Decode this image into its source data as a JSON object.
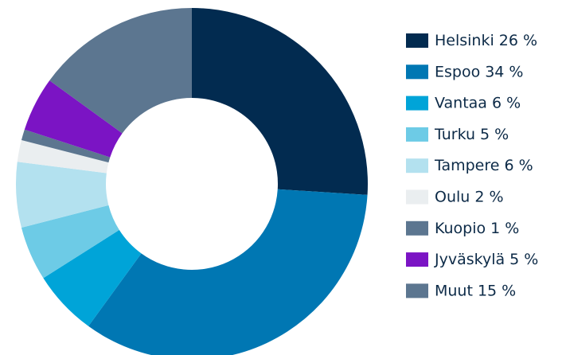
{
  "chart_data": {
    "type": "donut",
    "categories": [
      "Helsinki",
      "Espoo",
      "Vantaa",
      "Turku",
      "Tampere",
      "Oulu",
      "Kuopio",
      "Jyväskylä",
      "Muut"
    ],
    "values": [
      26,
      34,
      6,
      5,
      6,
      2,
      1,
      5,
      15
    ],
    "value_labels": [
      "26 %",
      "34 %",
      "6 %",
      "5 %",
      "6 %",
      "2 %",
      "1 %",
      "5 %",
      "15 %"
    ],
    "colors": [
      "#022b50",
      "#0077b3",
      "#00a4d8",
      "#6dcbe6",
      "#b3e1ef",
      "#eaeef0",
      "#5c7690",
      "#7b14c4",
      "#5c7690"
    ],
    "legend": "right"
  }
}
